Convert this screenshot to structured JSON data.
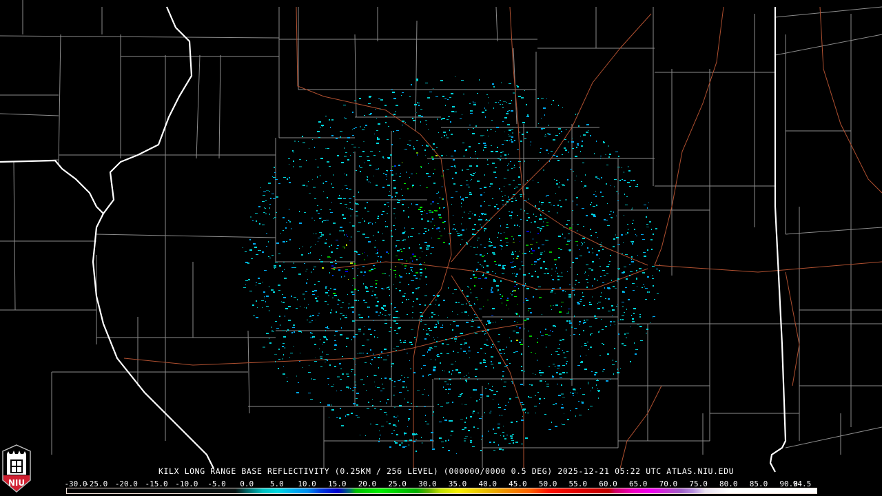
{
  "product_title": "KILX LONG RANGE BASE REFLECTIVITY (0.25KM / 256 LEVEL) (000000/0000 0.5 DEG) 2025-12-21 05:22 UTC  ATLAS.NIU.EDU",
  "logo": {
    "text": "NIU",
    "icon": "niu-shield-logo-icon"
  },
  "colorbar": {
    "labels": [
      "-30.0",
      "-25.0",
      "-20.0",
      "-15.0",
      "-10.0",
      "-5.0",
      "0.0",
      "5.0",
      "10.0",
      "15.0",
      "20.0",
      "25.0",
      "30.0",
      "35.0",
      "40.0",
      "45.0",
      "50.0",
      "55.0",
      "60.0",
      "65.0",
      "70.0",
      "75.0",
      "80.0",
      "85.0",
      "90.0",
      "94.5"
    ],
    "min": -30,
    "max": 94.5,
    "stops": [
      [
        -30,
        "#000000"
      ],
      [
        -2,
        "#0a1414"
      ],
      [
        0,
        "#006a6a"
      ],
      [
        2.5,
        "#00c0c0"
      ],
      [
        5,
        "#00d8e0"
      ],
      [
        8,
        "#00a8f0"
      ],
      [
        10,
        "#0090f0"
      ],
      [
        12,
        "#0040e0"
      ],
      [
        15,
        "#0000d0"
      ],
      [
        17,
        "#007070"
      ],
      [
        18,
        "#00c000"
      ],
      [
        22,
        "#00f000"
      ],
      [
        28,
        "#00b000"
      ],
      [
        30,
        "#60b000"
      ],
      [
        32,
        "#c0e000"
      ],
      [
        35,
        "#f8f000"
      ],
      [
        40,
        "#e8b800"
      ],
      [
        43,
        "#f09000"
      ],
      [
        47,
        "#ff6000"
      ],
      [
        50,
        "#ff1000"
      ],
      [
        55,
        "#e00000"
      ],
      [
        60,
        "#c00000"
      ],
      [
        61,
        "#d00060"
      ],
      [
        64,
        "#f000c0"
      ],
      [
        67,
        "#f000f0"
      ],
      [
        70,
        "#c040d0"
      ],
      [
        72,
        "#a060c8"
      ],
      [
        74,
        "#b890e0"
      ],
      [
        76,
        "#e8e0f0"
      ],
      [
        80,
        "#ffffff"
      ],
      [
        94.5,
        "#ffffff"
      ]
    ]
  },
  "radar_site": "KILX",
  "colors": {
    "state_border": "#ffffff",
    "county_border": "#8c8c8c",
    "highway": "#b05030",
    "background": "#000000"
  }
}
